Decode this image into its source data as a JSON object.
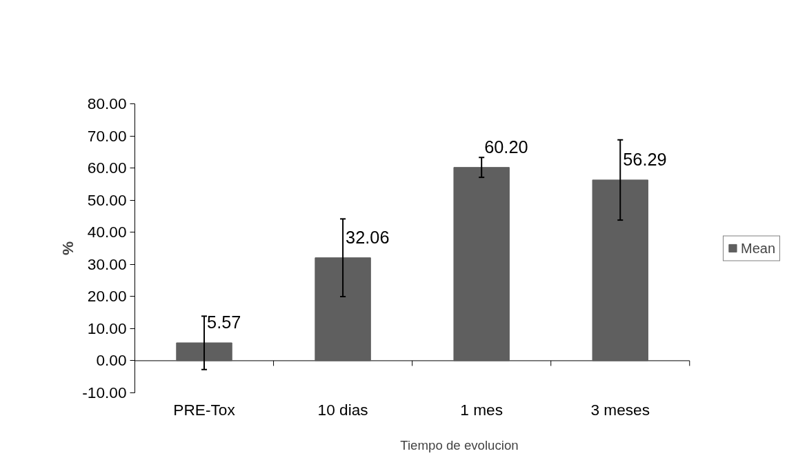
{
  "chart_data": {
    "type": "bar",
    "xlabel": "Tiempo de evolucion",
    "ylabel": "%",
    "categories": [
      "PRE-Tox",
      "10 dias",
      "1 mes",
      "3 meses"
    ],
    "series": [
      {
        "name": "Mean",
        "color": "#5f5f5f",
        "values": [
          5.57,
          32.06,
          60.2,
          56.29
        ],
        "value_labels": [
          "5.57",
          "32.06",
          "60.20",
          "56.29"
        ],
        "errors": [
          8.3,
          12.1,
          3.1,
          12.5
        ]
      }
    ],
    "ylim": [
      -10,
      80
    ],
    "yticks": [
      {
        "value": -10,
        "label": "-10.00"
      },
      {
        "value": 0,
        "label": "0.00"
      },
      {
        "value": 10,
        "label": "10.00"
      },
      {
        "value": 20,
        "label": "20.00"
      },
      {
        "value": 30,
        "label": "30.00"
      },
      {
        "value": 40,
        "label": "40.00"
      },
      {
        "value": 50,
        "label": "50.00"
      },
      {
        "value": 60,
        "label": "60.00"
      },
      {
        "value": 70,
        "label": "70.00"
      },
      {
        "value": 80,
        "label": "80.00"
      }
    ],
    "grid": false,
    "legend": "right"
  }
}
